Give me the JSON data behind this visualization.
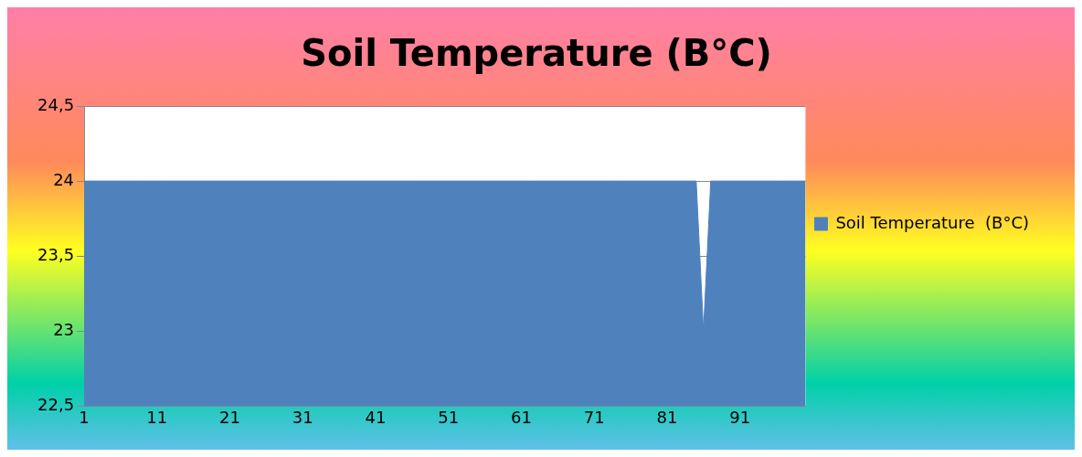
{
  "chart_data": {
    "type": "area",
    "title": "Soil Temperature (B°C)",
    "categories": [
      "1",
      null,
      null,
      null,
      null,
      null,
      null,
      null,
      null,
      null,
      "11",
      null,
      null,
      null,
      null,
      null,
      null,
      null,
      null,
      null,
      "21",
      null,
      null,
      null,
      null,
      null,
      null,
      null,
      null,
      null,
      "31",
      null,
      null,
      null,
      null,
      null,
      null,
      null,
      null,
      null,
      "41",
      null,
      null,
      null,
      null,
      null,
      null,
      null,
      null,
      null,
      "51",
      null,
      null,
      null,
      null,
      null,
      null,
      null,
      null,
      null,
      "61",
      null,
      null,
      null,
      null,
      null,
      null,
      null,
      null,
      null,
      "71",
      null,
      null,
      null,
      null,
      null,
      null,
      null,
      null,
      null,
      "81",
      null,
      null,
      null,
      null,
      null,
      null,
      null,
      null,
      null,
      "91",
      null,
      null,
      null,
      null,
      null,
      null,
      null,
      null,
      null
    ],
    "series": [
      {
        "name": "Soil Temperature  (B°C)",
        "color": "#4f81bd",
        "values": [
          24,
          24,
          24,
          24,
          24,
          24,
          24,
          24,
          24,
          24,
          24,
          24,
          24,
          24,
          24,
          24,
          24,
          24,
          24,
          24,
          24,
          24,
          24,
          24,
          24,
          24,
          24,
          24,
          24,
          24,
          24,
          24,
          24,
          24,
          24,
          24,
          24,
          24,
          24,
          24,
          24,
          24,
          24,
          24,
          24,
          24,
          24,
          24,
          24,
          24,
          24,
          24,
          24,
          24,
          24,
          24,
          24,
          24,
          24,
          24,
          24,
          24,
          24,
          24,
          24,
          24,
          24,
          24,
          24,
          24,
          24,
          24,
          24,
          24,
          24,
          24,
          24,
          24,
          24,
          24,
          24,
          24,
          24,
          24,
          24,
          23,
          24,
          24,
          24,
          24,
          24,
          24,
          24,
          24,
          24,
          24,
          24,
          24,
          24,
          24
        ]
      }
    ],
    "ylim": [
      22.5,
      24.5
    ],
    "yticks": [
      {
        "value": 22.5,
        "label": "22,5"
      },
      {
        "value": 23,
        "label": "23"
      },
      {
        "value": 23.5,
        "label": "23,5"
      },
      {
        "value": 24,
        "label": "24"
      },
      {
        "value": 24.5,
        "label": "24,5"
      }
    ],
    "grid": "y",
    "legend": "right"
  }
}
